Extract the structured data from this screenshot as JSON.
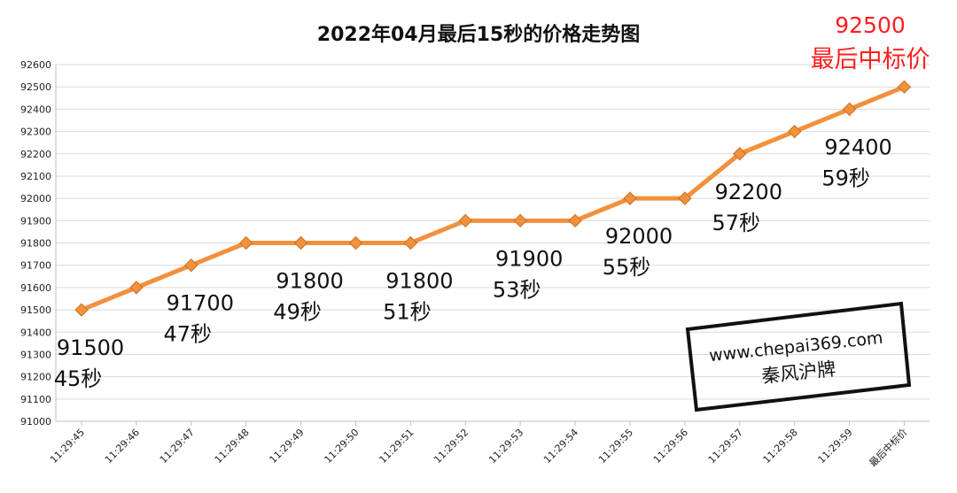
{
  "chart_data": {
    "type": "line",
    "title": "2022年04月最后15秒的价格走势图",
    "xlabel": "",
    "ylabel": "",
    "ylim": [
      91000,
      92600
    ],
    "yticks": [
      91000,
      91100,
      91200,
      91300,
      91400,
      91500,
      91600,
      91700,
      91800,
      91900,
      92000,
      92100,
      92200,
      92300,
      92400,
      92500,
      92600
    ],
    "grid": true,
    "legend": "none",
    "categories": [
      "11:29:45",
      "11:29:46",
      "11:29:47",
      "11:29:48",
      "11:29:49",
      "11:29:50",
      "11:29:51",
      "11:29:52",
      "11:29:53",
      "11:29:54",
      "11:29:55",
      "11:29:56",
      "11:29:57",
      "11:29:58",
      "11:29:59",
      "最后中标价"
    ],
    "values": [
      91500,
      91600,
      91700,
      91800,
      91800,
      91800,
      91800,
      91900,
      91900,
      91900,
      92000,
      92000,
      92200,
      92300,
      92400,
      92500
    ],
    "line_color": "#F2913D",
    "marker_color": "#F2913D",
    "annotations": [
      {
        "category": "11:29:45",
        "price": "91500",
        "second": "45秒"
      },
      {
        "category": "11:29:47",
        "price": "91700",
        "second": "47秒"
      },
      {
        "category": "11:29:49",
        "price": "91800",
        "second": "49秒"
      },
      {
        "category": "11:29:51",
        "price": "91800",
        "second": "51秒"
      },
      {
        "category": "11:29:53",
        "price": "91900",
        "second": "53秒"
      },
      {
        "category": "11:29:55",
        "price": "92000",
        "second": "55秒"
      },
      {
        "category": "11:29:57",
        "price": "92200",
        "second": "57秒"
      },
      {
        "category": "11:29:59",
        "price": "92400",
        "second": "59秒"
      }
    ],
    "final_annotation": {
      "price": "92500",
      "label": "最后中标价",
      "color": "#FF1F1F"
    },
    "watermark": {
      "line1": "www.chepai369.com",
      "line2": "秦风沪牌"
    }
  }
}
